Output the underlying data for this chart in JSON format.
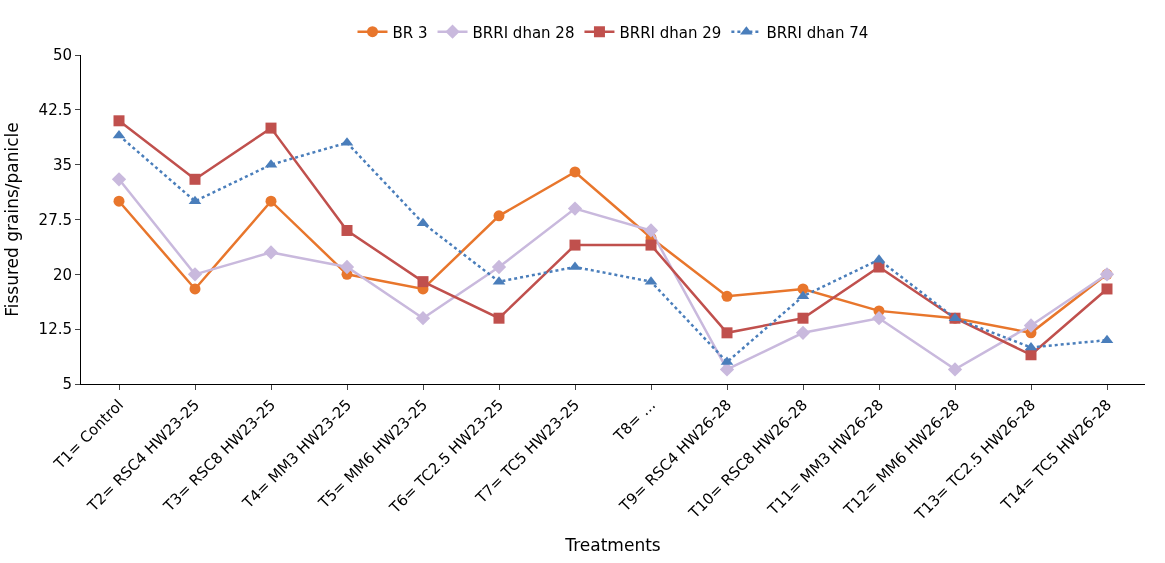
{
  "chart_data": {
    "type": "line",
    "xlabel": "Treatments",
    "ylabel": "Fissured grains/panicle",
    "categories": [
      "T1= Control",
      "T2= RSC4 HW23-25",
      "T3= RSC8 HW23-25",
      "T4= MM3 HW23-25",
      "T5= MM6 HW23-25",
      "T6= TC2.5 HW23-25",
      "T7= TC5 HW23-25",
      "T8= …",
      "T9= RSC4 HW26-28",
      "T10= RSC8 HW26-28",
      "T11= MM3 HW26-28",
      "T12= MM6 HW26-28",
      "T13= TC2.5 HW26-28",
      "T14= TC5 HW26-28"
    ],
    "series": [
      {
        "name": "BR 3",
        "color": "#e8762c",
        "marker": "circle",
        "line_style": "solid",
        "values": [
          30,
          18,
          30,
          20,
          18,
          28,
          34,
          25,
          17,
          18,
          15,
          14,
          12,
          20
        ]
      },
      {
        "name": "BRRI dhan 28",
        "color": "#c9b9dd",
        "marker": "diamond",
        "line_style": "solid",
        "values": [
          33,
          20,
          23,
          21,
          14,
          21,
          29,
          26,
          7,
          12,
          14,
          7,
          13,
          20
        ]
      },
      {
        "name": "BRRI dhan 29",
        "color": "#c0504d",
        "marker": "square",
        "line_style": "solid",
        "values": [
          41,
          33,
          40,
          26,
          19,
          14,
          24,
          24,
          12,
          14,
          21,
          14,
          9,
          18
        ]
      },
      {
        "name": "BRRI dhan 74",
        "color": "#4a7ebb",
        "marker": "triangle",
        "line_style": "dotted",
        "values": [
          39,
          30,
          35,
          38,
          27,
          19,
          21,
          19,
          8,
          17,
          22,
          14,
          10,
          11
        ]
      }
    ],
    "ylim": [
      5,
      50
    ],
    "yticks": [
      5,
      12.5,
      20,
      27.5,
      35,
      42.5,
      50
    ],
    "legend": "top"
  }
}
